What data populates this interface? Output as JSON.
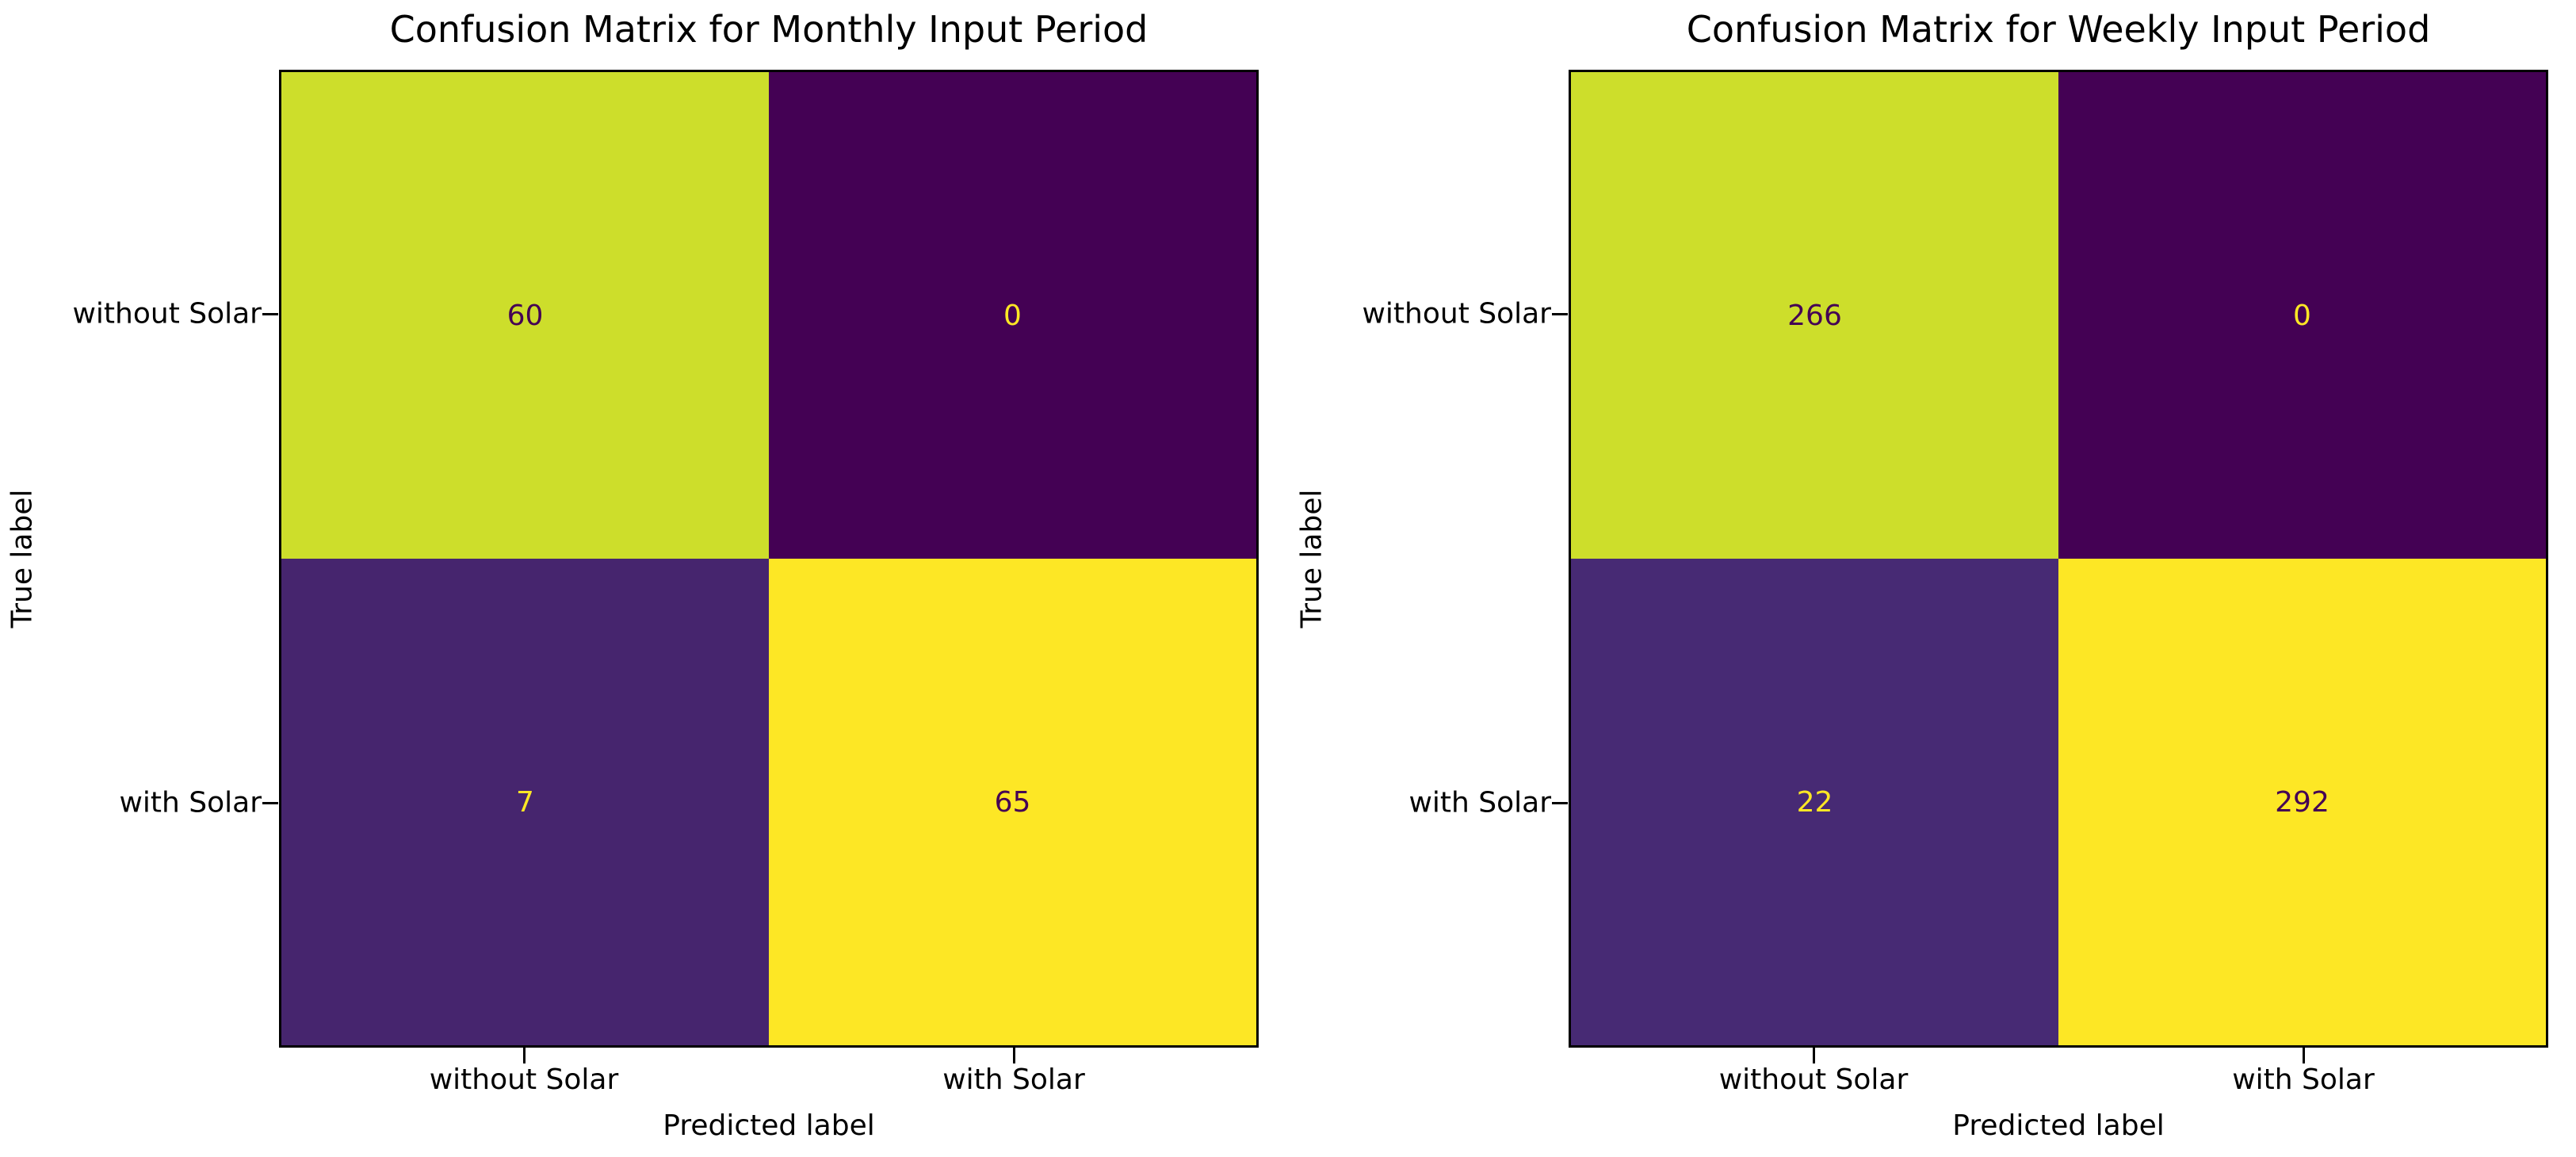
{
  "figure": {
    "background": "#ffffff",
    "text_color": "#000000",
    "colormap": "viridis"
  },
  "chart_data": [
    {
      "type": "heatmap",
      "title": "Confusion Matrix for Monthly Input Period",
      "xlabel": "Predicted label",
      "ylabel": "True label",
      "x_tick_labels": [
        "without Solar",
        "with Solar"
      ],
      "y_tick_labels": [
        "without Solar",
        "with Solar"
      ],
      "matrix": [
        [
          60,
          0
        ],
        [
          7,
          65
        ]
      ],
      "vmin": 0,
      "vmax": 65,
      "colormap": "viridis",
      "grid": false,
      "legend": "none",
      "cells": [
        [
          {
            "value": "60",
            "bg": "#cdde2b",
            "fg": "#440154"
          },
          {
            "value": "0",
            "bg": "#440154",
            "fg": "#fde725"
          }
        ],
        [
          {
            "value": "7",
            "bg": "#46256e",
            "fg": "#fde725"
          },
          {
            "value": "65",
            "bg": "#fde725",
            "fg": "#440154"
          }
        ]
      ]
    },
    {
      "type": "heatmap",
      "title": "Confusion Matrix for Weekly Input Period",
      "xlabel": "Predicted label",
      "ylabel": "True label",
      "x_tick_labels": [
        "without Solar",
        "with Solar"
      ],
      "y_tick_labels": [
        "without Solar",
        "with Solar"
      ],
      "matrix": [
        [
          266,
          0
        ],
        [
          22,
          292
        ]
      ],
      "vmin": 0,
      "vmax": 292,
      "colormap": "viridis",
      "grid": false,
      "legend": "none",
      "cells": [
        [
          {
            "value": "266",
            "bg": "#cdde2b",
            "fg": "#440154"
          },
          {
            "value": "0",
            "bg": "#440154",
            "fg": "#fde725"
          }
        ],
        [
          {
            "value": "22",
            "bg": "#472a74",
            "fg": "#fde725"
          },
          {
            "value": "292",
            "bg": "#fde725",
            "fg": "#440154"
          }
        ]
      ]
    }
  ]
}
